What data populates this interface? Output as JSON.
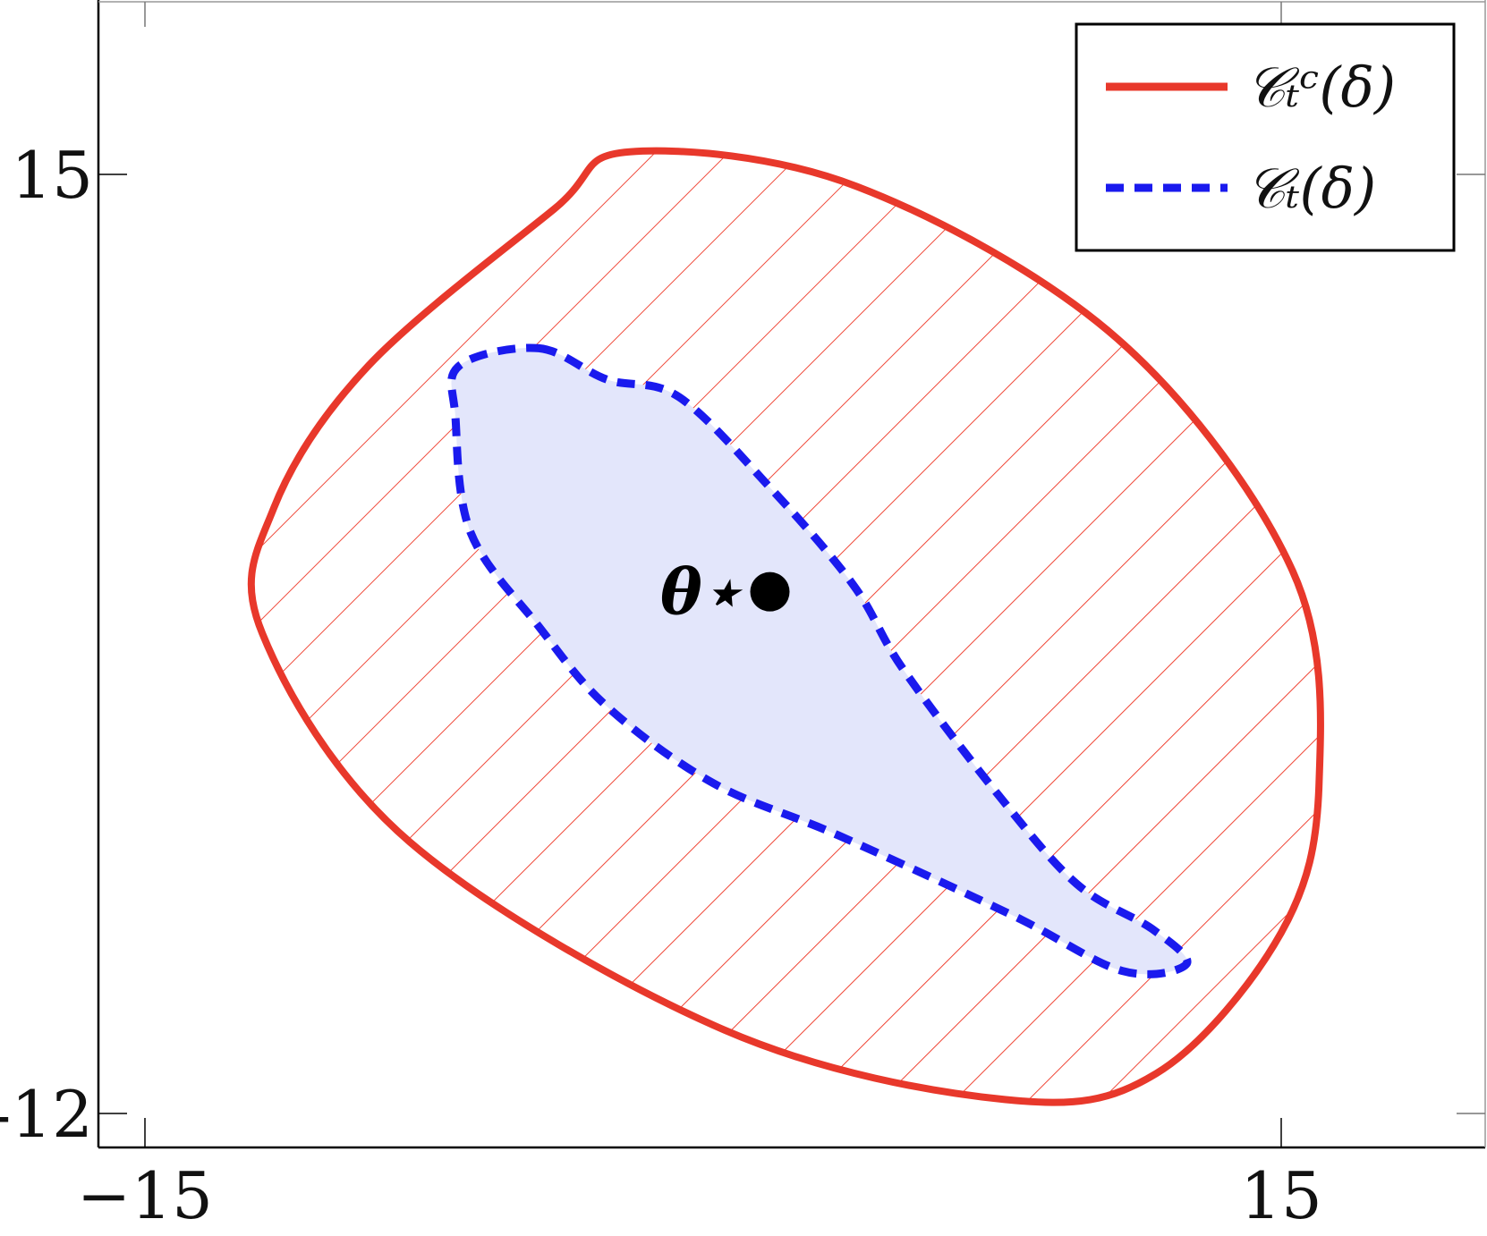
{
  "chart_data": {
    "type": "area",
    "title": "",
    "xlabel": "",
    "ylabel": "",
    "xlim": [
      -15,
      15
    ],
    "ylim": [
      -12,
      15
    ],
    "x_ticks": [
      -15,
      15
    ],
    "y_ticks": [
      15,
      -12
    ],
    "x_tick_labels": [
      "−15",
      "15"
    ],
    "y_tick_labels": [
      "15",
      "-12"
    ],
    "grid": false,
    "legend_position": "top-right",
    "series": [
      {
        "name": "𝒞ₜᶜ(δ)",
        "style": "solid",
        "fill": "hatched",
        "color": "#e8382b",
        "points": [
          [
            -2.2,
            15.65
          ],
          [
            3.8,
            14.65
          ],
          [
            10.7,
            10.25
          ],
          [
            15.3,
            3.6
          ],
          [
            16.0,
            -2.5
          ],
          [
            15.0,
            -6.8
          ],
          [
            11.7,
            -10.85
          ],
          [
            7.7,
            -11.6
          ],
          [
            0.3,
            -9.6
          ],
          [
            -8.0,
            -4.2
          ],
          [
            -11.9,
            1.8
          ],
          [
            -11.6,
            5.4
          ],
          [
            -9.1,
            9.5
          ],
          [
            -4.2,
            14.0
          ]
        ]
      },
      {
        "name": "𝒞ₜ(δ)",
        "style": "dashed",
        "fill": "#e3e6fb",
        "color": "#1a1aee",
        "points": [
          [
            -4.6,
            10.0
          ],
          [
            -2.8,
            9.1
          ],
          [
            -0.9,
            8.6
          ],
          [
            1.5,
            6.0
          ],
          [
            3.7,
            3.2
          ],
          [
            5.0,
            0.8
          ],
          [
            7.5,
            -2.8
          ],
          [
            9.6,
            -5.4
          ],
          [
            11.6,
            -6.7
          ],
          [
            12.5,
            -7.7
          ],
          [
            10.8,
            -7.9
          ],
          [
            7.9,
            -6.3
          ],
          [
            3.3,
            -4.0
          ],
          [
            0.0,
            -2.5
          ],
          [
            -2.8,
            -0.3
          ],
          [
            -4.6,
            2.0
          ],
          [
            -6.4,
            4.7
          ],
          [
            -6.8,
            8.0
          ],
          [
            -6.7,
            9.5
          ]
        ]
      }
    ],
    "points": [
      {
        "label": "θ⋆",
        "x": 1.5,
        "y": 3.0
      }
    ]
  }
}
